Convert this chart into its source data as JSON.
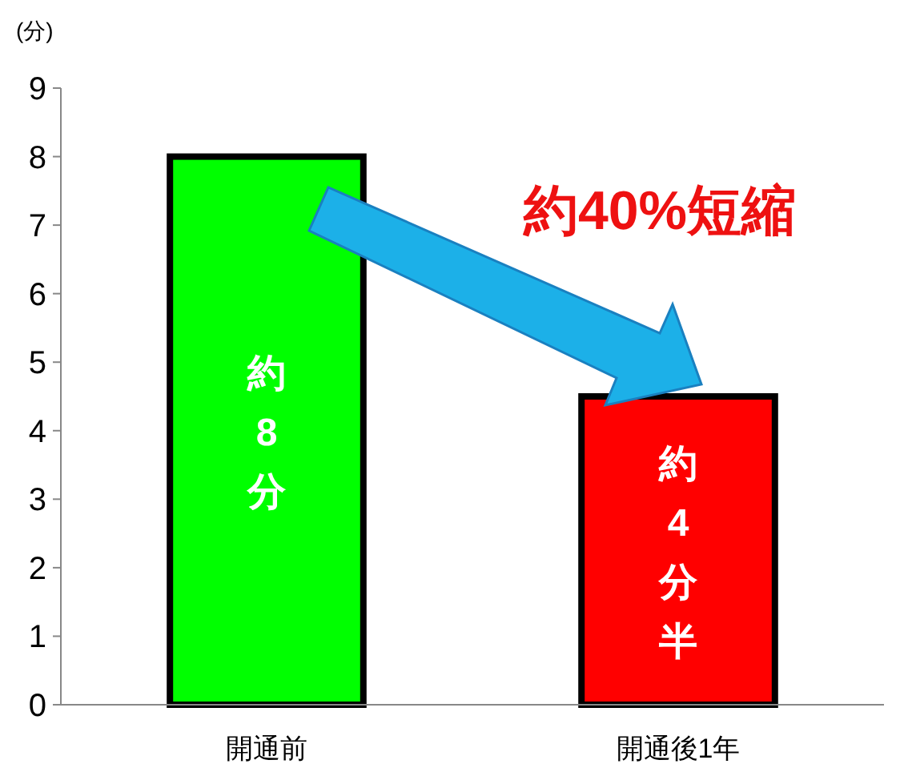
{
  "chart_data": {
    "type": "bar",
    "ylabel": "(分)",
    "categories": [
      "開通前",
      "開通後1年"
    ],
    "values": [
      8,
      4.5
    ],
    "colors": [
      "#00ff00",
      "#ff0000"
    ],
    "value_labels": [
      "約8分",
      "約4分半"
    ],
    "ylim": [
      0,
      9
    ],
    "yticks": [
      0,
      1,
      2,
      3,
      4,
      5,
      6,
      7,
      8,
      9
    ],
    "grid": false,
    "annotations": [
      "約40%短縮"
    ]
  }
}
